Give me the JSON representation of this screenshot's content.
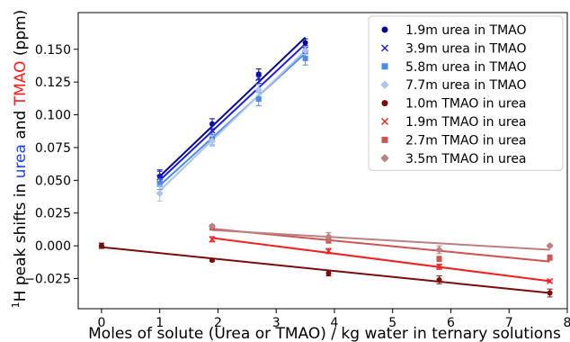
{
  "chart_data": {
    "type": "scatter",
    "xlabel": "Moles of solute (Urea or TMAO) / kg water in ternary solutions",
    "ylabel_parts": [
      {
        "text": "H peak shifts in ",
        "color": "#000000"
      },
      {
        "text": "urea",
        "color": "#1f3fff"
      },
      {
        "text": " and ",
        "color": "#000000"
      },
      {
        "text": "TMAO",
        "color": "#ff1a1a"
      },
      {
        "text": " (ppm)",
        "color": "#000000"
      }
    ],
    "ylabel_superscript": "1",
    "xlim": [
      -0.4,
      8.0
    ],
    "ylim": [
      -0.048,
      0.178
    ],
    "xticks": [
      0,
      1,
      2,
      3,
      4,
      5,
      6,
      7,
      8
    ],
    "yticks": [
      -0.025,
      0.0,
      0.025,
      0.05,
      0.075,
      0.1,
      0.125,
      0.15
    ],
    "ytick_labels": [
      "−0.025",
      "0.000",
      "0.025",
      "0.050",
      "0.075",
      "0.100",
      "0.125",
      "0.150"
    ],
    "legend_position": "top-right",
    "series": [
      {
        "name": "1.9m urea in TMAO",
        "marker": "circle",
        "color": "#08088a",
        "points": [
          {
            "x": 0.0,
            "y": 0.0,
            "err": 0.002
          },
          {
            "x": 1.0,
            "y": 0.053,
            "err": 0.004
          },
          {
            "x": 1.9,
            "y": 0.093,
            "err": 0.004
          },
          {
            "x": 2.7,
            "y": 0.131,
            "err": 0.004
          },
          {
            "x": 3.5,
            "y": 0.155,
            "err": 0.003
          }
        ],
        "fit": [
          {
            "x": 1.0,
            "y": 0.053
          },
          {
            "x": 3.5,
            "y": 0.159
          }
        ]
      },
      {
        "name": "3.9m urea in TMAO",
        "marker": "x",
        "color": "#1c1cdc",
        "points": [
          {
            "x": 1.0,
            "y": 0.052,
            "err": 0.006
          },
          {
            "x": 1.9,
            "y": 0.088,
            "err": 0.005
          },
          {
            "x": 2.7,
            "y": 0.128,
            "err": 0.004
          },
          {
            "x": 3.5,
            "y": 0.15,
            "err": 0.003
          }
        ],
        "fit": [
          {
            "x": 1.0,
            "y": 0.05
          },
          {
            "x": 3.5,
            "y": 0.154
          }
        ]
      },
      {
        "name": "5.8m urea in TMAO",
        "marker": "square",
        "color": "#4b8ce6",
        "points": [
          {
            "x": 1.0,
            "y": 0.047,
            "err": 0.004
          },
          {
            "x": 1.9,
            "y": 0.081,
            "err": 0.004
          },
          {
            "x": 2.7,
            "y": 0.112,
            "err": 0.005
          },
          {
            "x": 3.5,
            "y": 0.143,
            "err": 0.005
          }
        ],
        "fit": [
          {
            "x": 1.0,
            "y": 0.046
          },
          {
            "x": 3.5,
            "y": 0.147
          }
        ]
      },
      {
        "name": "7.7m urea in TMAO",
        "marker": "diamond",
        "color": "#aec4ea",
        "points": [
          {
            "x": 1.0,
            "y": 0.04,
            "err": 0.006
          },
          {
            "x": 1.9,
            "y": 0.08,
            "err": 0.004
          },
          {
            "x": 2.7,
            "y": 0.119,
            "err": 0.004
          },
          {
            "x": 3.5,
            "y": 0.149,
            "err": 0.003
          }
        ],
        "fit": [
          {
            "x": 1.0,
            "y": 0.042
          },
          {
            "x": 3.5,
            "y": 0.149
          }
        ]
      },
      {
        "name": "1.0m TMAO in urea",
        "marker": "circle",
        "color": "#7a0c0c",
        "points": [
          {
            "x": 0.0,
            "y": 0.0,
            "err": 0.002
          },
          {
            "x": 1.9,
            "y": -0.011,
            "err": 0.001
          },
          {
            "x": 3.9,
            "y": -0.021,
            "err": 0.002
          },
          {
            "x": 5.8,
            "y": -0.026,
            "err": 0.003
          },
          {
            "x": 7.7,
            "y": -0.036,
            "err": 0.003
          }
        ],
        "fit": [
          {
            "x": 0.0,
            "y": -0.001
          },
          {
            "x": 7.7,
            "y": -0.036
          }
        ]
      },
      {
        "name": "1.9m TMAO in urea",
        "marker": "x",
        "color": "#ee2222",
        "points": [
          {
            "x": 1.9,
            "y": 0.005,
            "err": 0.002
          },
          {
            "x": 3.9,
            "y": -0.004,
            "err": 0.002
          },
          {
            "x": 5.8,
            "y": -0.016,
            "err": 0.002
          },
          {
            "x": 7.7,
            "y": -0.027,
            "err": 0.001
          }
        ],
        "fit": [
          {
            "x": 1.9,
            "y": 0.006
          },
          {
            "x": 7.7,
            "y": -0.027
          }
        ]
      },
      {
        "name": "2.7m TMAO in urea",
        "marker": "square",
        "color": "#cc5555",
        "points": [
          {
            "x": 1.9,
            "y": 0.014,
            "err": 0.002
          },
          {
            "x": 3.9,
            "y": 0.004,
            "err": 0.002
          },
          {
            "x": 5.8,
            "y": -0.01,
            "err": 0.002
          },
          {
            "x": 7.7,
            "y": -0.009,
            "err": 0.002
          }
        ],
        "fit": [
          {
            "x": 1.9,
            "y": 0.013
          },
          {
            "x": 7.7,
            "y": -0.012
          }
        ]
      },
      {
        "name": "3.5m TMAO in urea",
        "marker": "diamond",
        "color": "#bb8080",
        "points": [
          {
            "x": 1.9,
            "y": 0.015,
            "err": 0.001
          },
          {
            "x": 3.9,
            "y": 0.007,
            "err": 0.003
          },
          {
            "x": 5.8,
            "y": -0.003,
            "err": 0.003
          },
          {
            "x": 7.7,
            "y": 0.0,
            "err": 0.001
          }
        ],
        "fit": [
          {
            "x": 1.9,
            "y": 0.012
          },
          {
            "x": 7.7,
            "y": -0.003
          }
        ]
      }
    ]
  }
}
